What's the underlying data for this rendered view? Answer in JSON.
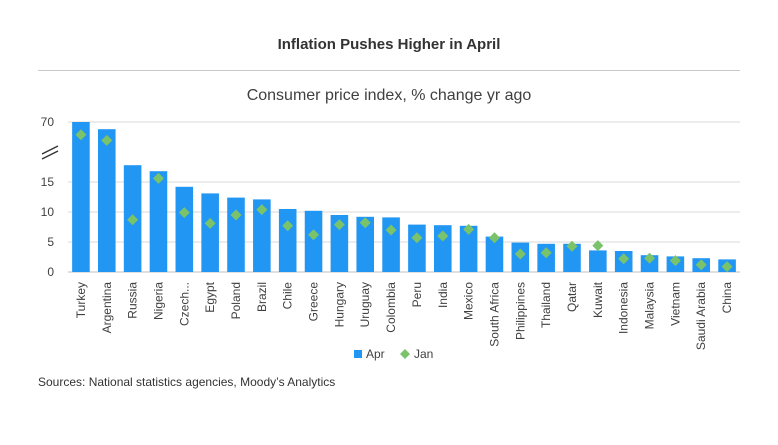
{
  "header": {
    "title": "Inflation Pushes Higher in April"
  },
  "source": "Sources: National statistics agencies, Moody’s Analytics",
  "chart_data": {
    "type": "bar",
    "title": "Inflation Pushes Higher in April",
    "subtitle": "Consumer price index, % change  yr ago",
    "xlabel": "",
    "ylabel": "",
    "ylim": [
      0,
      70
    ],
    "axis_break": true,
    "y_ticks": [
      "0",
      "5",
      "10",
      "15",
      "20",
      "70"
    ],
    "grid": true,
    "legend_position": "bottom",
    "categories": [
      "Turkey",
      "Argentina",
      "Russia",
      "Nigeria",
      "Czech...",
      "Egypt",
      "Poland",
      "Brazil",
      "Chile",
      "Greece",
      "Hungary",
      "Uruguay",
      "Colombia",
      "Peru",
      "India",
      "Mexico",
      "South Africa",
      "Philippines",
      "Thailand",
      "Qatar",
      "Kuwait",
      "Indonesia",
      "Malaysia",
      "Vietnam",
      "Saudi Arabia",
      "China"
    ],
    "series": [
      {
        "name": "Apr",
        "type": "bar",
        "color": "#2196f3",
        "values": [
          70.0,
          58.0,
          17.8,
          16.8,
          14.2,
          13.1,
          12.4,
          12.1,
          10.5,
          10.2,
          9.5,
          9.2,
          9.1,
          7.9,
          7.8,
          7.7,
          5.9,
          4.9,
          4.7,
          4.7,
          3.6,
          3.5,
          2.8,
          2.6,
          2.3,
          2.1
        ]
      },
      {
        "name": "Jan",
        "type": "marker",
        "color": "#7ac36a",
        "values": [
          48.7,
          39.3,
          8.7,
          15.6,
          9.9,
          8.1,
          9.5,
          10.4,
          7.7,
          6.2,
          7.9,
          8.2,
          7.0,
          5.7,
          6.0,
          7.1,
          5.7,
          3.0,
          3.2,
          4.3,
          4.4,
          2.2,
          2.3,
          1.9,
          1.2,
          0.9
        ]
      }
    ]
  }
}
